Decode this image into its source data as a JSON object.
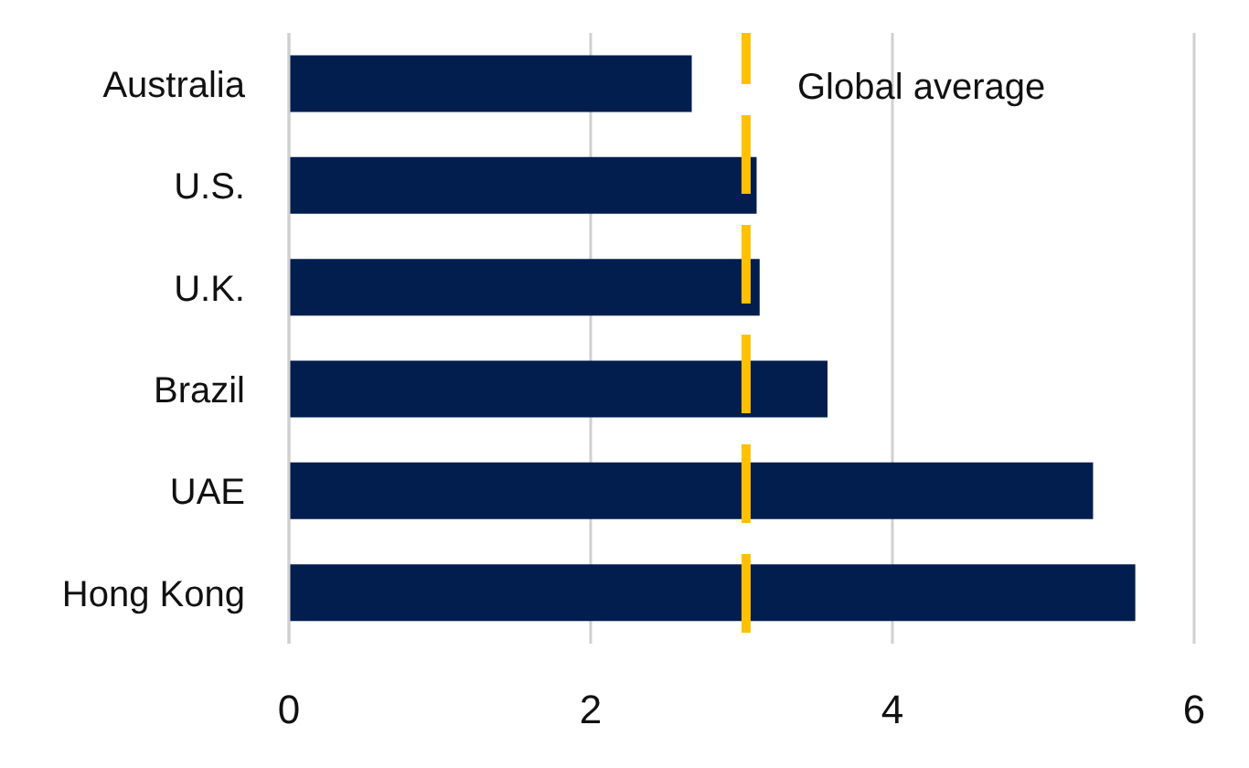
{
  "chart_data": {
    "type": "bar",
    "orientation": "horizontal",
    "categories": [
      "Australia",
      "U.S.",
      "U.K.",
      "Brazil",
      "UAE",
      "Hong Kong"
    ],
    "values": [
      2.67,
      3.1,
      3.12,
      3.57,
      5.33,
      5.61
    ],
    "color": "#021e4e",
    "xlim": [
      0,
      6
    ],
    "xticks": [
      0,
      2,
      4,
      6
    ],
    "grid": "x",
    "ref_lines": [
      {
        "axis": "x",
        "value": 3.03,
        "label": "Global average",
        "color": "#ffc000",
        "line_style": "dashed"
      }
    ]
  }
}
